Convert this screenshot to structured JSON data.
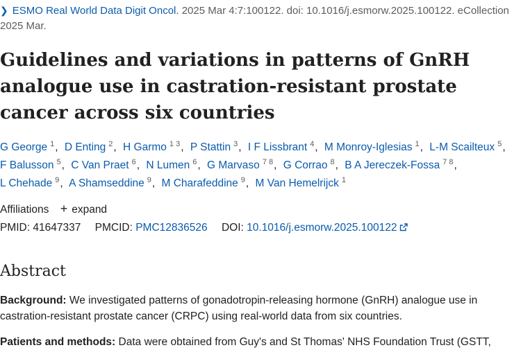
{
  "citation": {
    "journal": "ESMO Real World Data Digit Oncol.",
    "details": "2025 Mar 4:7:100122. doi: 10.1016/j.esmorw.2025.100122. eCollection 2025 Mar."
  },
  "title": "Guidelines and variations in patterns of GnRH analogue use in castration-resistant prostate cancer across six countries",
  "authors": [
    {
      "name": "G George",
      "aff": "1"
    },
    {
      "name": "D Enting",
      "aff": "2"
    },
    {
      "name": "H Garmo",
      "aff": "1 3"
    },
    {
      "name": "P Stattin",
      "aff": "3"
    },
    {
      "name": "I F Lissbrant",
      "aff": "4"
    },
    {
      "name": "M Monroy-Iglesias",
      "aff": "1"
    },
    {
      "name": "L-M Scailteux",
      "aff": "5"
    },
    {
      "name": "F Balusson",
      "aff": "5"
    },
    {
      "name": "C Van Praet",
      "aff": "6"
    },
    {
      "name": "N Lumen",
      "aff": "6"
    },
    {
      "name": "G Marvaso",
      "aff": "7 8"
    },
    {
      "name": "G Corrao",
      "aff": "8"
    },
    {
      "name": "B A Jereczek-Fossa",
      "aff": "7 8"
    },
    {
      "name": "L Chehade",
      "aff": "9"
    },
    {
      "name": "A Shamseddine",
      "aff": "9"
    },
    {
      "name": "M Charafeddine",
      "aff": "9"
    },
    {
      "name": "M Van Hemelrijck",
      "aff": "1"
    }
  ],
  "affiliations": {
    "label": "Affiliations",
    "expand_label": "expand"
  },
  "ids": {
    "pmid_label": "PMID:",
    "pmid": "41647337",
    "pmcid_label": "PMCID:",
    "pmcid": "PMC12836526",
    "doi_label": "DOI:",
    "doi": "10.1016/j.esmorw.2025.100122"
  },
  "abstract": {
    "heading": "Abstract",
    "background_label": "Background:",
    "background_text": "We investigated patterns of gonadotropin-releasing hormone (GnRH) analogue use in castration-resistant prostate cancer (CRPC) using real-world data from six countries.",
    "methods_label": "Patients and methods:",
    "methods_text": "Data were obtained from Guy's and St Thomas' NHS Foundation Trust (GSTT,"
  },
  "icons": {
    "chevron": "chevron-right-icon",
    "plus": "plus-icon",
    "external_link": "external-link-icon"
  },
  "colors": {
    "link": "#0b5cad",
    "text": "#212121",
    "muted": "#5c5c5c"
  }
}
